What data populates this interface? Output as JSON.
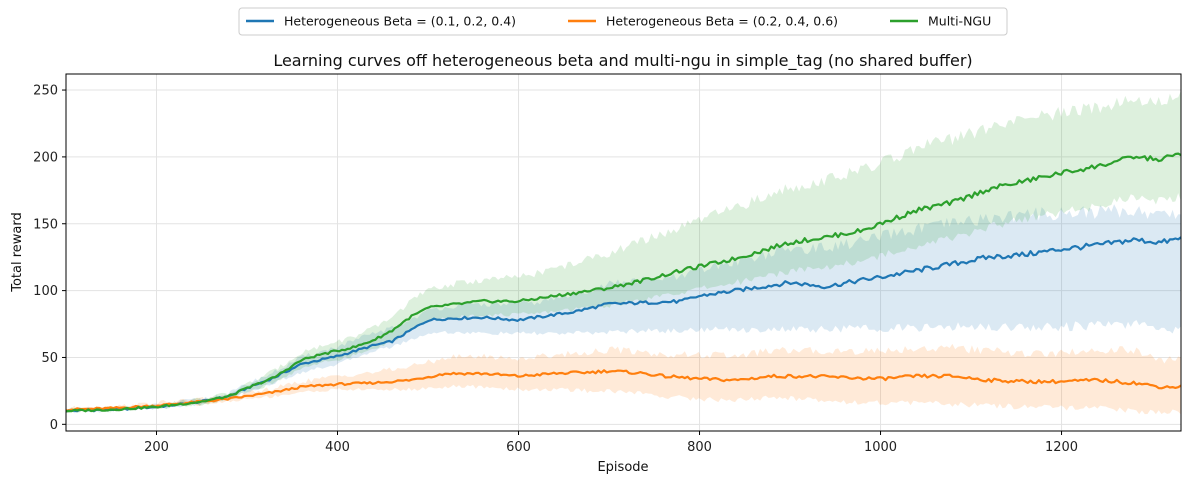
{
  "chart_data": {
    "type": "line",
    "title": "Learning curves off heterogeneous beta and multi-ngu in simple_tag (no shared buffer)",
    "xlabel": "Episode",
    "ylabel": "Total reward",
    "xlim": [
      100,
      1332
    ],
    "ylim": [
      -5,
      262
    ],
    "xticks": [
      200,
      400,
      600,
      800,
      1000,
      1200
    ],
    "yticks": [
      0,
      50,
      100,
      150,
      200,
      250
    ],
    "grid": true,
    "legend_position": "top-center",
    "series": [
      {
        "name": "Heterogeneous Beta = (0.1, 0.2, 0.4)",
        "color": "#1f77b4",
        "x": [
          100,
          150,
          200,
          250,
          280,
          300,
          330,
          360,
          380,
          400,
          420,
          440,
          460,
          480,
          500,
          520,
          560,
          600,
          620,
          660,
          700,
          740,
          780,
          800,
          840,
          880,
          900,
          940,
          980,
          1000,
          1040,
          1080,
          1120,
          1160,
          1200,
          1240,
          1280,
          1310,
          1332
        ],
        "y": [
          10,
          11,
          13,
          17,
          21,
          27,
          35,
          45,
          48,
          51,
          55,
          59,
          62,
          70,
          78,
          79,
          80,
          78,
          80,
          84,
          90,
          91,
          92,
          96,
          100,
          104,
          106,
          103,
          108,
          110,
          115,
          120,
          125,
          127,
          131,
          134,
          138,
          136,
          139
        ],
        "lower": [
          9,
          10,
          12,
          15,
          19,
          24,
          31,
          39,
          42,
          45,
          50,
          55,
          58,
          63,
          68,
          69,
          68,
          68,
          68,
          68,
          69,
          70,
          70,
          71,
          71,
          71,
          71,
          71,
          72,
          72,
          72,
          73,
          73,
          73,
          73,
          74,
          75,
          72,
          71
        ],
        "upper": [
          11,
          12,
          14,
          19,
          23,
          30,
          39,
          50,
          54,
          58,
          63,
          68,
          72,
          78,
          85,
          88,
          90,
          90,
          91,
          97,
          105,
          108,
          110,
          115,
          122,
          128,
          131,
          132,
          137,
          140,
          146,
          150,
          154,
          157,
          158,
          159,
          160,
          157,
          158
        ]
      },
      {
        "name": "Heterogeneous Beta = (0.2, 0.4, 0.6)",
        "color": "#ff7f0e",
        "x": [
          100,
          150,
          200,
          250,
          280,
          300,
          330,
          360,
          400,
          440,
          480,
          520,
          560,
          600,
          640,
          680,
          700,
          740,
          760,
          800,
          840,
          880,
          920,
          960,
          1000,
          1040,
          1080,
          1120,
          1160,
          1200,
          1240,
          1280,
          1310,
          1332
        ],
        "y": [
          11,
          12,
          14,
          17,
          19,
          21,
          24,
          28,
          30,
          31,
          33,
          38,
          38,
          36,
          38,
          39,
          40,
          38,
          36,
          34,
          33,
          36,
          36,
          35,
          34,
          36,
          36,
          33,
          32,
          32,
          33,
          31,
          28,
          28
        ],
        "lower": [
          10,
          11,
          13,
          15,
          17,
          19,
          21,
          24,
          26,
          26,
          26,
          28,
          28,
          26,
          26,
          25,
          25,
          23,
          21,
          19,
          18,
          20,
          19,
          17,
          16,
          16,
          15,
          14,
          13,
          12,
          12,
          10,
          9,
          9
        ],
        "upper": [
          12,
          13,
          16,
          19,
          21,
          23,
          27,
          32,
          36,
          39,
          43,
          50,
          51,
          49,
          52,
          54,
          56,
          54,
          52,
          52,
          51,
          55,
          55,
          55,
          55,
          57,
          57,
          55,
          53,
          53,
          56,
          55,
          48,
          48
        ]
      },
      {
        "name": "Multi-NGU",
        "color": "#2ca02c",
        "x": [
          100,
          150,
          200,
          250,
          280,
          300,
          330,
          360,
          380,
          400,
          420,
          440,
          460,
          480,
          500,
          520,
          560,
          600,
          620,
          660,
          700,
          740,
          780,
          800,
          840,
          880,
          900,
          940,
          980,
          1000,
          1040,
          1080,
          1120,
          1160,
          1200,
          1240,
          1280,
          1310,
          1332
        ],
        "y": [
          10,
          11,
          13,
          17,
          21,
          27,
          35,
          48,
          52,
          55,
          58,
          63,
          70,
          80,
          87,
          89,
          92,
          92,
          94,
          98,
          102,
          108,
          115,
          118,
          124,
          132,
          136,
          140,
          145,
          150,
          160,
          166,
          176,
          182,
          188,
          193,
          200,
          198,
          203
        ],
        "lower": [
          9,
          10,
          12,
          15,
          19,
          24,
          31,
          42,
          46,
          48,
          52,
          56,
          62,
          70,
          77,
          79,
          82,
          82,
          83,
          86,
          89,
          93,
          99,
          101,
          106,
          112,
          115,
          118,
          122,
          126,
          134,
          139,
          148,
          154,
          159,
          163,
          170,
          167,
          170
        ],
        "upper": [
          11,
          12,
          14,
          19,
          23,
          30,
          40,
          54,
          58,
          62,
          66,
          72,
          80,
          92,
          100,
          104,
          108,
          110,
          113,
          120,
          128,
          138,
          147,
          153,
          162,
          172,
          177,
          183,
          190,
          195,
          207,
          213,
          222,
          228,
          233,
          237,
          244,
          240,
          247
        ]
      }
    ]
  }
}
